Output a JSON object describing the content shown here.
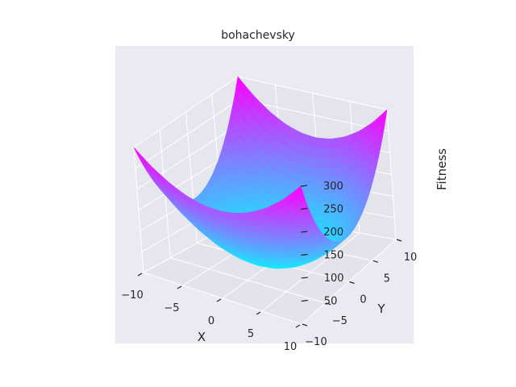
{
  "chart_data": {
    "type": "surface",
    "title": "bohachevsky",
    "xlabel": "X",
    "ylabel": "Y",
    "zlabel": "Fitness",
    "x_ticks": [
      "−10",
      "−5",
      "0",
      "5",
      "10"
    ],
    "y_ticks": [
      "−10",
      "−5",
      "0",
      "5",
      "10"
    ],
    "z_ticks": [
      "50",
      "100",
      "150",
      "200",
      "250",
      "300"
    ],
    "x_range": [
      -10,
      10
    ],
    "y_range": [
      -10,
      10
    ],
    "z_range": [
      0,
      300
    ],
    "colormap": "cool",
    "colormap_colors": [
      "#00ffff",
      "#ff00ff"
    ],
    "function": "x^2 + 2*y^2 - 0.3*cos(3*pi*x) - 0.4*cos(4*pi*y) + 0.7",
    "grid": true,
    "background": "#eaeaf2"
  }
}
